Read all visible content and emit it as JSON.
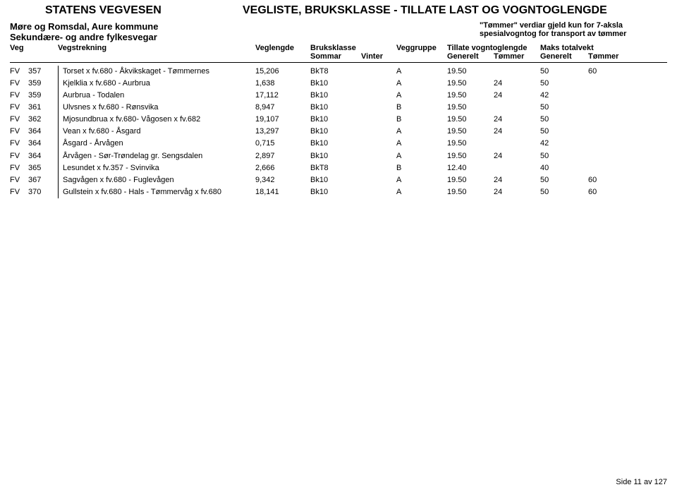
{
  "header": {
    "org": "STATENS VEGVESEN",
    "title": "VEGLISTE,  BRUKSKLASSE - TILLATE LAST OG VOGNTOGLENGDE"
  },
  "subheader": {
    "region": "Møre og Romsdal, Aure kommune",
    "section": "Sekundære- og andre fylkesvegar",
    "note1": "\"Tømmer\" verdiar gjeld kun for 7-aksla",
    "note2": "spesialvogntog for transport av tømmer"
  },
  "columns": {
    "veg": "Veg",
    "strek": "Vegstrekning",
    "lengde": "Veglengde",
    "bruksklasse": "Bruksklasse",
    "sommar": "Sommar",
    "vinter": "Vinter",
    "gruppe": "Veggruppe",
    "tillate": "Tillate vogntoglengde",
    "tillate_g": "Generelt",
    "tillate_t": "Tømmer",
    "maks": "Maks totalvekt",
    "maks_g": "Generelt",
    "maks_t": "Tømmer"
  },
  "rows": [
    {
      "cat": "FV",
      "num": "357",
      "name": "Torset x fv.680 - Åkvikskaget - Tømmernes",
      "len": "15,206",
      "bk": "BkT8",
      "grp": "A",
      "tg": "19.50",
      "tt": "",
      "mg": "50",
      "mt": "60"
    },
    {
      "cat": "FV",
      "num": "359",
      "name": "Kjelklia x fv.680 - Aurbrua",
      "len": "1,638",
      "bk": "Bk10",
      "grp": "A",
      "tg": "19.50",
      "tt": "24",
      "mg": "50",
      "mt": ""
    },
    {
      "cat": "FV",
      "num": "359",
      "name": "Aurbrua - Todalen",
      "len": "17,112",
      "bk": "Bk10",
      "grp": "A",
      "tg": "19.50",
      "tt": "24",
      "mg": "42",
      "mt": ""
    },
    {
      "cat": "FV",
      "num": "361",
      "name": "Ulvsnes x fv.680 - Rønsvika",
      "len": "8,947",
      "bk": "Bk10",
      "grp": "B",
      "tg": "19.50",
      "tt": "",
      "mg": "50",
      "mt": ""
    },
    {
      "cat": "FV",
      "num": "362",
      "name": "Mjosundbrua x fv.680- Vågosen x fv.682",
      "len": "19,107",
      "bk": "Bk10",
      "grp": "B",
      "tg": "19.50",
      "tt": "24",
      "mg": "50",
      "mt": ""
    },
    {
      "cat": "FV",
      "num": "364",
      "name": "Vean x fv.680 - Åsgard",
      "len": "13,297",
      "bk": "Bk10",
      "grp": "A",
      "tg": "19.50",
      "tt": "24",
      "mg": "50",
      "mt": ""
    },
    {
      "cat": "FV",
      "num": "364",
      "name": "Åsgard - Årvågen",
      "len": "0,715",
      "bk": "Bk10",
      "grp": "A",
      "tg": "19.50",
      "tt": "",
      "mg": "42",
      "mt": ""
    },
    {
      "cat": "FV",
      "num": "364",
      "name": "Årvågen - Sør-Trøndelag gr. Sengsdalen",
      "len": "2,897",
      "bk": "Bk10",
      "grp": "A",
      "tg": "19.50",
      "tt": "24",
      "mg": "50",
      "mt": ""
    },
    {
      "cat": "FV",
      "num": "365",
      "name": "Lesundet x fv.357 - Svinvika",
      "len": "2,666",
      "bk": "BkT8",
      "grp": "B",
      "tg": "12.40",
      "tt": "",
      "mg": "40",
      "mt": ""
    },
    {
      "cat": "FV",
      "num": "367",
      "name": "Sagvågen x fv.680 - Fuglevågen",
      "len": "9,342",
      "bk": "Bk10",
      "grp": "A",
      "tg": "19.50",
      "tt": "24",
      "mg": "50",
      "mt": "60"
    },
    {
      "cat": "FV",
      "num": "370",
      "name": "Gullstein x fv.680 - Hals - Tømmervåg x fv.680",
      "len": "18,141",
      "bk": "Bk10",
      "grp": "A",
      "tg": "19.50",
      "tt": "24",
      "mg": "50",
      "mt": "60"
    }
  ],
  "footer": "Side 11 av 127"
}
